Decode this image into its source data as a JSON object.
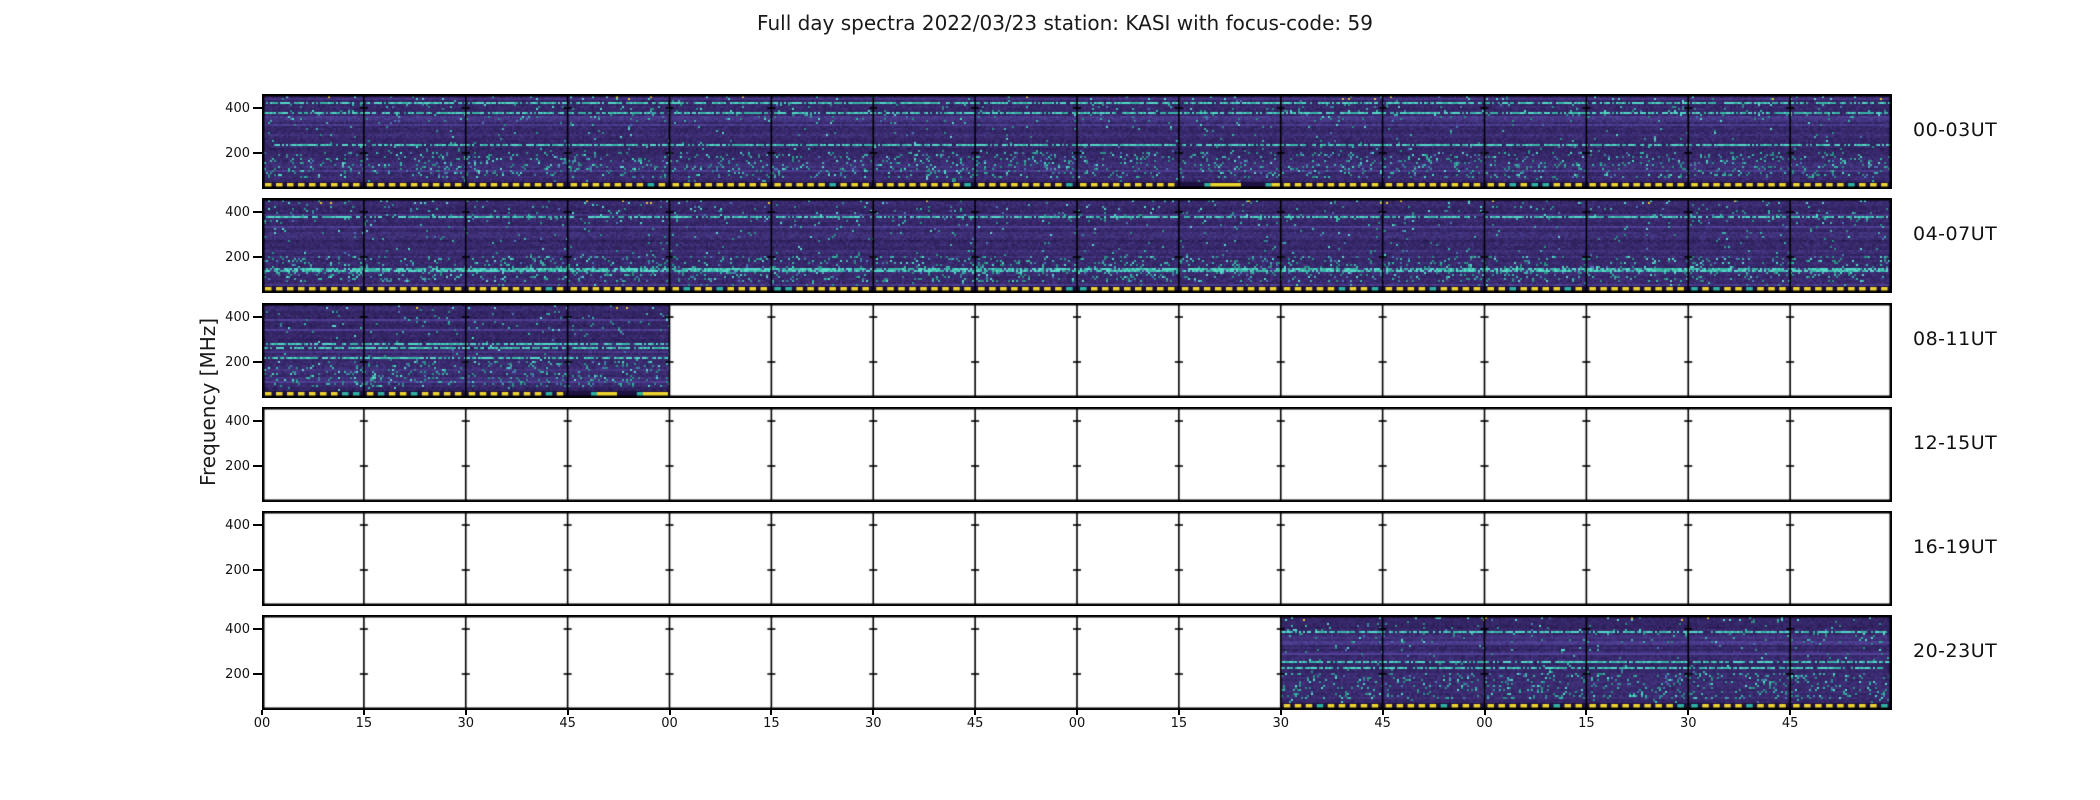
{
  "title": "Full day spectra 2022/03/23 station: KASI with focus-code: 59",
  "y_axis": {
    "label": "Frequency [MHz]",
    "tick_top": "400",
    "tick_bottom": "200"
  },
  "x_axis": {
    "tick_labels": [
      "00",
      "15",
      "30",
      "45",
      "00",
      "15",
      "30",
      "45",
      "00",
      "15",
      "30",
      "45",
      "00",
      "15",
      "30",
      "45"
    ]
  },
  "rows": [
    {
      "label": "00-03UT",
      "filled": [
        0,
        15
      ],
      "no_dots": [
        9
      ],
      "bars": [
        {
          "cell": 9,
          "from": 0.25,
          "to": 0.61
        },
        {
          "cell": 9,
          "from": 0.85,
          "to": 1.0
        }
      ]
    },
    {
      "label": "04-07UT",
      "filled": [
        0,
        15
      ],
      "no_dots": [],
      "bars": []
    },
    {
      "label": "08-11UT",
      "filled": [
        0,
        3
      ],
      "no_dots": [
        3
      ],
      "bars": [
        {
          "cell": 3,
          "from": 0.23,
          "to": 0.485
        },
        {
          "cell": 3,
          "from": 0.68,
          "to": 0.985
        }
      ]
    },
    {
      "label": "12-15UT",
      "filled": null,
      "no_dots": [],
      "bars": []
    },
    {
      "label": "16-19UT",
      "filled": null,
      "no_dots": [],
      "bars": []
    },
    {
      "label": "20-23UT",
      "filled": [
        10,
        15
      ],
      "no_dots": [],
      "bars": []
    }
  ],
  "colors": {
    "background": "#ffffff",
    "frame": "#000000",
    "spectrogram_base": "#38296d",
    "spectrogram_dark": "#241849",
    "spectrogram_light": "#483989",
    "speckle_teal": "#39b3a6",
    "speckle_bright": "#54d8c8",
    "speckle_blue": "#4a74b5",
    "marker_yellow": "#eed42e",
    "marker_teal": "#2fb3a3",
    "strip_background": "#1d1240"
  },
  "chart_data": {
    "type": "heatmap",
    "title": "Full day spectra 2022/03/23 station: KASI with focus-code: 59",
    "meta": {
      "date": "2022/03/23",
      "station": "KASI",
      "focus_code": 59
    },
    "ylabel": "Frequency [MHz]",
    "y_ticks_mhz": [
      200,
      400
    ],
    "y_range_mhz_approx": [
      45,
      450
    ],
    "x_tick_labels_minutes": [
      "00",
      "15",
      "30",
      "45",
      "00",
      "15",
      "30",
      "45",
      "00",
      "15",
      "30",
      "45",
      "00",
      "15",
      "30",
      "45"
    ],
    "layout": "6 stacked rows x 16 fifteen-minute spectrogram segments (4 hours per row), grid frames on, row labels on right",
    "rows": [
      {
        "label": "00-03UT",
        "segments_total": 16,
        "segments_with_data": 16,
        "data_coverage": "00:00-04:00 UT full"
      },
      {
        "label": "04-07UT",
        "segments_total": 16,
        "segments_with_data": 16,
        "data_coverage": "04:00-08:00 UT full"
      },
      {
        "label": "08-11UT",
        "segments_total": 16,
        "segments_with_data": 4,
        "data_coverage": "08:00-09:00 UT only, rest empty"
      },
      {
        "label": "12-15UT",
        "segments_total": 16,
        "segments_with_data": 0,
        "data_coverage": "no data"
      },
      {
        "label": "16-19UT",
        "segments_total": 16,
        "segments_with_data": 0,
        "data_coverage": "no data"
      },
      {
        "label": "20-23UT",
        "segments_total": 16,
        "segments_with_data": 6,
        "data_coverage": "22:30-24:00 UT"
      }
    ],
    "detection_marks": [
      {
        "row": "00-03UT",
        "description": "solid yellow bar segments at panel bottom",
        "approx_time": "02:18-02:30 UT"
      },
      {
        "row": "08-11UT",
        "description": "solid yellow bar segments at panel bottom",
        "approx_time": "08:48-09:00 UT"
      }
    ],
    "bottom_strip": "dotted yellow (occasionally teal) activity line along the bottom of every segment containing data"
  }
}
